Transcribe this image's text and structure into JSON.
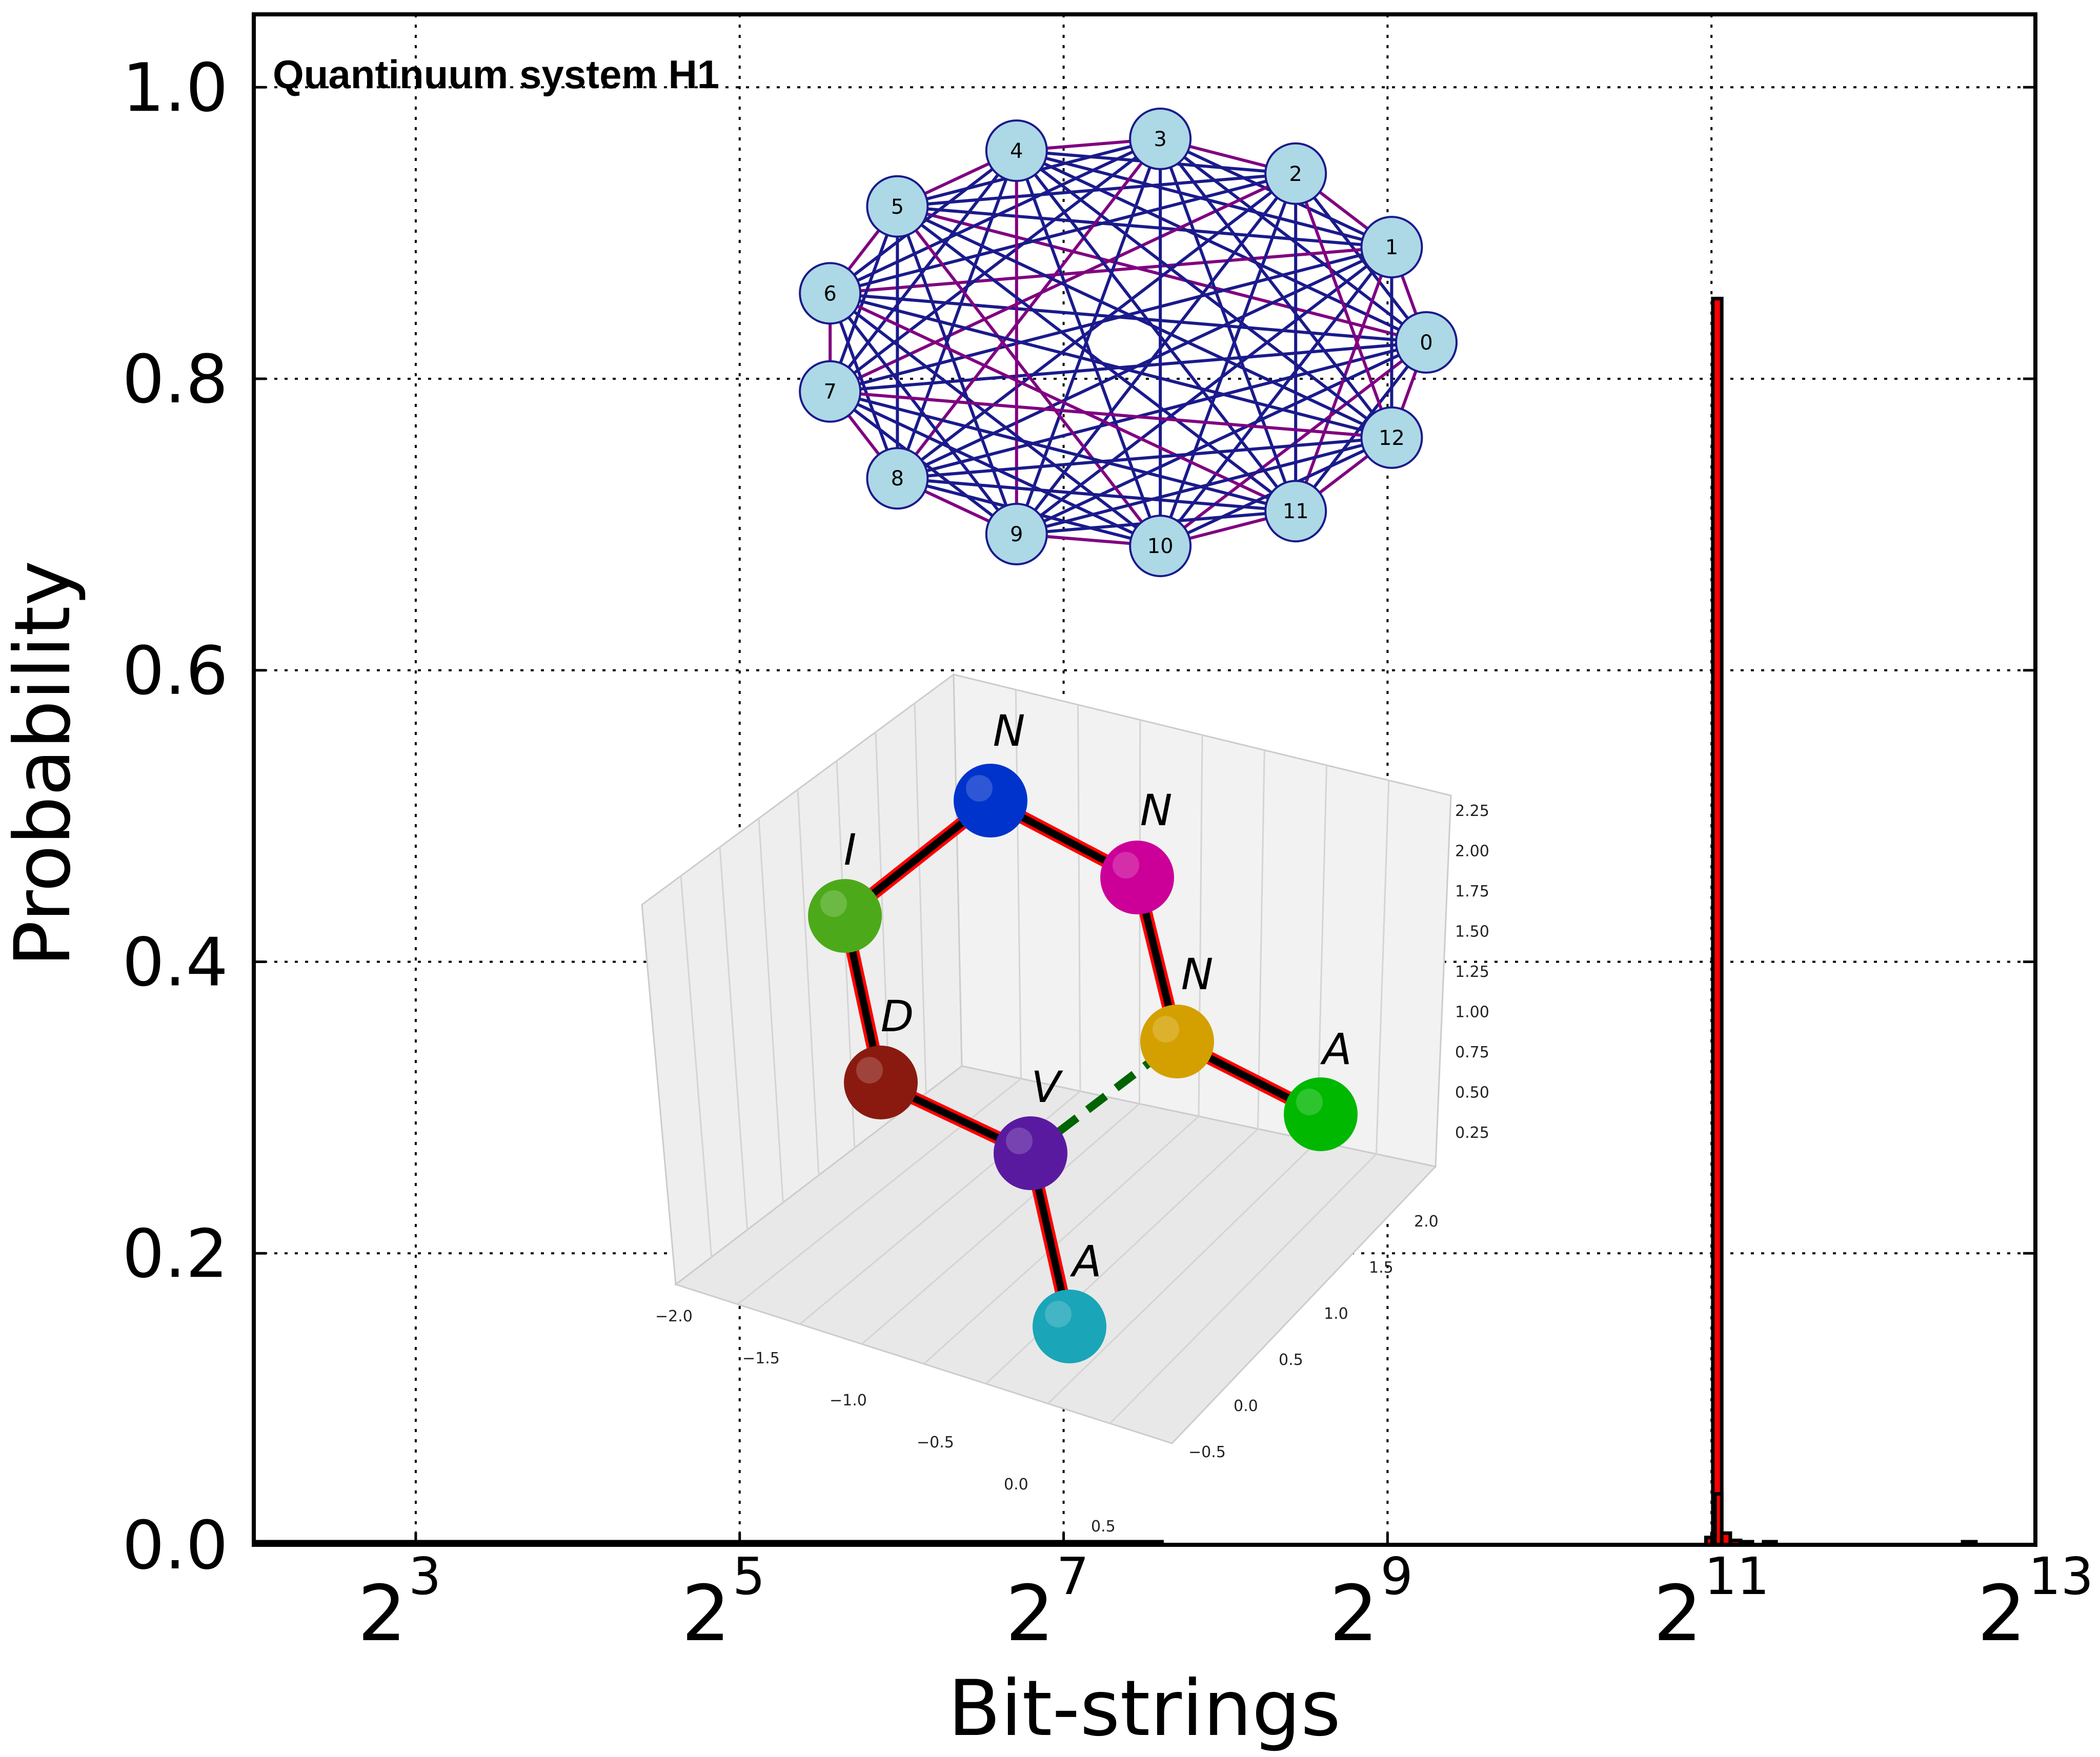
{
  "colors": {
    "bar_fill": "#ff0000",
    "bar_edge": "#000000",
    "grid": "#000000",
    "node_fill": "#add8e6",
    "node_edge": "#1a1a8c",
    "edge_blue": "#1a1a8c",
    "edge_purple": "#800080",
    "bond_core": "#000000",
    "bond_edge": "#ff0000",
    "hbond": "#006400"
  },
  "chart_data": {
    "type": "bar",
    "title": "",
    "xlabel": "Bit-strings",
    "ylabel": "Probability",
    "x_scale": "log2",
    "xlim": [
      4,
      8192
    ],
    "ylim": [
      0,
      1.05
    ],
    "grid": true,
    "y_ticks": [
      {
        "value": 0.0,
        "label": "0.0"
      },
      {
        "value": 0.2,
        "label": "0.2"
      },
      {
        "value": 0.4,
        "label": "0.4"
      },
      {
        "value": 0.6,
        "label": "0.6"
      },
      {
        "value": 0.8,
        "label": "0.8"
      },
      {
        "value": 1.0,
        "label": "1.0"
      }
    ],
    "x_ticks": [
      {
        "value": 8,
        "base": "2",
        "exp": "3"
      },
      {
        "value": 32,
        "base": "2",
        "exp": "5"
      },
      {
        "value": 128,
        "base": "2",
        "exp": "7"
      },
      {
        "value": 512,
        "base": "2",
        "exp": "9"
      },
      {
        "value": 2048,
        "base": "2",
        "exp": "11"
      },
      {
        "value": 8192,
        "base": "2",
        "exp": "13"
      }
    ],
    "bars": [
      {
        "x0": 4,
        "x1": 160,
        "value": 0.002
      },
      {
        "x0": 160,
        "x1": 195,
        "value": 0.001
      },
      {
        "x0": 2000,
        "x1": 2060,
        "value": 0.005
      },
      {
        "x0": 2060,
        "x1": 2140,
        "value": 0.855
      },
      {
        "x0": 2080,
        "x1": 2140,
        "value": 0.035
      },
      {
        "x0": 2140,
        "x1": 2220,
        "value": 0.008
      },
      {
        "x0": 2220,
        "x1": 2320,
        "value": 0.003
      },
      {
        "x0": 2320,
        "x1": 2440,
        "value": 0.002
      },
      {
        "x0": 2560,
        "x1": 2700,
        "value": 0.002
      },
      {
        "x0": 6000,
        "x1": 6350,
        "value": 0.001
      }
    ]
  },
  "graph_inset": {
    "title": "Quantinuum system H1",
    "nodes": [
      "0",
      "1",
      "2",
      "3",
      "4",
      "5",
      "6",
      "7",
      "8",
      "9",
      "10",
      "11",
      "12"
    ]
  },
  "molecule_inset": {
    "atoms": [
      {
        "label": "N",
        "color": "#0033cc"
      },
      {
        "label": "N",
        "color": "#cc0099"
      },
      {
        "label": "N",
        "color": "#d4a000"
      },
      {
        "label": "A",
        "color": "#00b800"
      },
      {
        "label": "I",
        "color": "#4caa1a"
      },
      {
        "label": "D",
        "color": "#8a1a10"
      },
      {
        "label": "V",
        "color": "#5a1aa0"
      },
      {
        "label": "A",
        "color": "#1aa5b8"
      }
    ],
    "z_ticks": [
      "2.25",
      "2.00",
      "1.75",
      "1.50",
      "1.25",
      "1.00",
      "0.75",
      "0.50",
      "0.25"
    ],
    "x_ticks": [
      "−2.0",
      "−1.5",
      "−1.0",
      "−0.5",
      "0.0",
      "0.5"
    ],
    "y_ticks": [
      "−0.5",
      "0.0",
      "0.5",
      "1.0",
      "1.5",
      "2.0"
    ]
  }
}
